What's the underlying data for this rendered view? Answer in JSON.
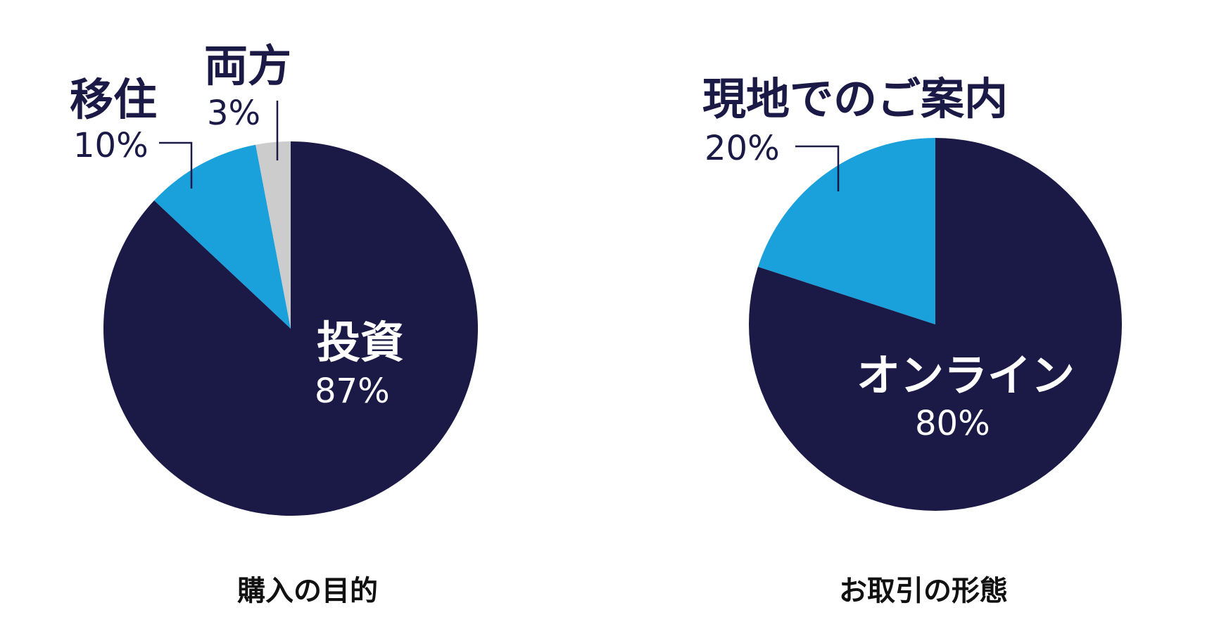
{
  "chart_data": [
    {
      "type": "pie",
      "title": "購入の目的",
      "slices": [
        {
          "name": "投資",
          "value": 87,
          "label": "87%",
          "color": "#1b1a47"
        },
        {
          "name": "移住",
          "value": 10,
          "label": "10%",
          "color": "#1aa0da"
        },
        {
          "name": "両方",
          "value": 3,
          "label": "3%",
          "color": "#cccccc"
        }
      ]
    },
    {
      "type": "pie",
      "title": "お取引の形態",
      "slices": [
        {
          "name": "オンライン",
          "value": 80,
          "label": "80%",
          "color": "#1b1a47"
        },
        {
          "name": "現地でのご案内",
          "value": 20,
          "label": "20%",
          "color": "#1aa0da"
        }
      ]
    }
  ],
  "colors": {
    "text_dark": "#1b1a47",
    "text_light": "#ffffff",
    "caption": "#111111",
    "leader_line": "#1b1a47"
  }
}
